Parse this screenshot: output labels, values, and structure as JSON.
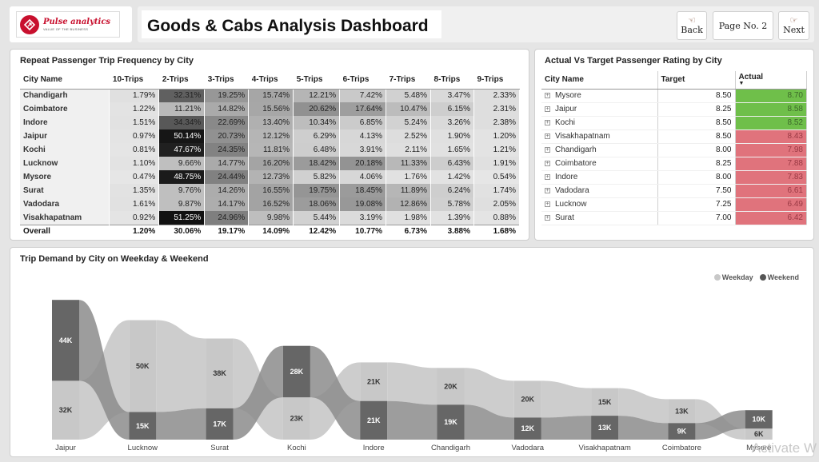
{
  "header": {
    "logo_name": "Pulse analytics",
    "logo_tagline": "VALUE OF THE BUSINESS",
    "title": "Goods & Cabs Analysis Dashboard",
    "back_label": "Back",
    "page_label": "Page No. 2",
    "next_label": "Next"
  },
  "frequency": {
    "title": "Repeat Passenger Trip Frequency by City",
    "columns": [
      "City Name",
      "10-Trips",
      "2-Trips",
      "3-Trips",
      "4-Trips",
      "5-Trips",
      "6-Trips",
      "7-Trips",
      "8-Trips",
      "9-Trips"
    ],
    "rows": [
      {
        "city": "Chandigarh",
        "v": [
          "1.79%",
          "32.31%",
          "19.25%",
          "15.74%",
          "12.21%",
          "7.42%",
          "5.48%",
          "3.47%",
          "2.33%"
        ]
      },
      {
        "city": "Coimbatore",
        "v": [
          "1.22%",
          "11.21%",
          "14.82%",
          "15.56%",
          "20.62%",
          "17.64%",
          "10.47%",
          "6.15%",
          "2.31%"
        ]
      },
      {
        "city": "Indore",
        "v": [
          "1.51%",
          "34.34%",
          "22.69%",
          "13.40%",
          "10.34%",
          "6.85%",
          "5.24%",
          "3.26%",
          "2.38%"
        ]
      },
      {
        "city": "Jaipur",
        "v": [
          "0.97%",
          "50.14%",
          "20.73%",
          "12.12%",
          "6.29%",
          "4.13%",
          "2.52%",
          "1.90%",
          "1.20%"
        ]
      },
      {
        "city": "Kochi",
        "v": [
          "0.81%",
          "47.67%",
          "24.35%",
          "11.81%",
          "6.48%",
          "3.91%",
          "2.11%",
          "1.65%",
          "1.21%"
        ]
      },
      {
        "city": "Lucknow",
        "v": [
          "1.10%",
          "9.66%",
          "14.77%",
          "16.20%",
          "18.42%",
          "20.18%",
          "11.33%",
          "6.43%",
          "1.91%"
        ]
      },
      {
        "city": "Mysore",
        "v": [
          "0.47%",
          "48.75%",
          "24.44%",
          "12.73%",
          "5.82%",
          "4.06%",
          "1.76%",
          "1.42%",
          "0.54%"
        ]
      },
      {
        "city": "Surat",
        "v": [
          "1.35%",
          "9.76%",
          "14.26%",
          "16.55%",
          "19.75%",
          "18.45%",
          "11.89%",
          "6.24%",
          "1.74%"
        ]
      },
      {
        "city": "Vadodara",
        "v": [
          "1.61%",
          "9.87%",
          "14.17%",
          "16.52%",
          "18.06%",
          "19.08%",
          "12.86%",
          "5.78%",
          "2.05%"
        ]
      },
      {
        "city": "Visakhapatnam",
        "v": [
          "0.92%",
          "51.25%",
          "24.96%",
          "9.98%",
          "5.44%",
          "3.19%",
          "1.98%",
          "1.39%",
          "0.88%"
        ]
      }
    ],
    "total": {
      "city": "Overall",
      "v": [
        "1.20%",
        "30.06%",
        "19.17%",
        "14.09%",
        "12.42%",
        "10.77%",
        "6.73%",
        "3.88%",
        "1.68%"
      ]
    }
  },
  "rating": {
    "title": "Actual Vs Target Passenger Rating by City",
    "columns": [
      "City Name",
      "Target",
      "Actual"
    ],
    "good_color": "#6fbf4a",
    "bad_color": "#e0737c",
    "rows": [
      {
        "city": "Mysore",
        "target": "8.50",
        "actual": "8.70",
        "status": "good"
      },
      {
        "city": "Jaipur",
        "target": "8.25",
        "actual": "8.58",
        "status": "good"
      },
      {
        "city": "Kochi",
        "target": "8.50",
        "actual": "8.52",
        "status": "good"
      },
      {
        "city": "Visakhapatnam",
        "target": "8.50",
        "actual": "8.43",
        "status": "bad"
      },
      {
        "city": "Chandigarh",
        "target": "8.00",
        "actual": "7.98",
        "status": "bad"
      },
      {
        "city": "Coimbatore",
        "target": "8.25",
        "actual": "7.88",
        "status": "bad"
      },
      {
        "city": "Indore",
        "target": "8.00",
        "actual": "7.83",
        "status": "bad"
      },
      {
        "city": "Vadodara",
        "target": "7.50",
        "actual": "6.61",
        "status": "bad"
      },
      {
        "city": "Lucknow",
        "target": "7.25",
        "actual": "6.49",
        "status": "bad"
      },
      {
        "city": "Surat",
        "target": "7.00",
        "actual": "6.42",
        "status": "bad"
      }
    ]
  },
  "demand": {
    "title": "Trip Demand by City on Weekday & Weekend",
    "legend_weekday": "Weekday",
    "legend_weekend": "Weekend",
    "weekday_color": "#c8c8c8",
    "weekend_color": "#666666"
  },
  "chart_data": {
    "type": "ribbon",
    "title": "Trip Demand by City on Weekday & Weekend",
    "categories": [
      "Jaipur",
      "Lucknow",
      "Surat",
      "Kochi",
      "Indore",
      "Chandigarh",
      "Vadodara",
      "Visakhapatnam",
      "Coimbatore",
      "Mysore"
    ],
    "series": [
      {
        "name": "Weekday",
        "values": [
          32,
          50,
          38,
          23,
          21,
          20,
          20,
          15,
          13,
          6
        ],
        "labels": [
          "32K",
          "50K",
          "38K",
          "23K",
          "21K",
          "20K",
          "20K",
          "15K",
          "13K",
          "6K"
        ]
      },
      {
        "name": "Weekend",
        "values": [
          44,
          15,
          17,
          28,
          21,
          19,
          12,
          13,
          9,
          10
        ],
        "labels": [
          "44K",
          "15K",
          "17K",
          "28K",
          "21K",
          "19K",
          "12K",
          "13K",
          "9K",
          "10K"
        ]
      }
    ],
    "legend": "top-right"
  },
  "watermark": "Activate W"
}
